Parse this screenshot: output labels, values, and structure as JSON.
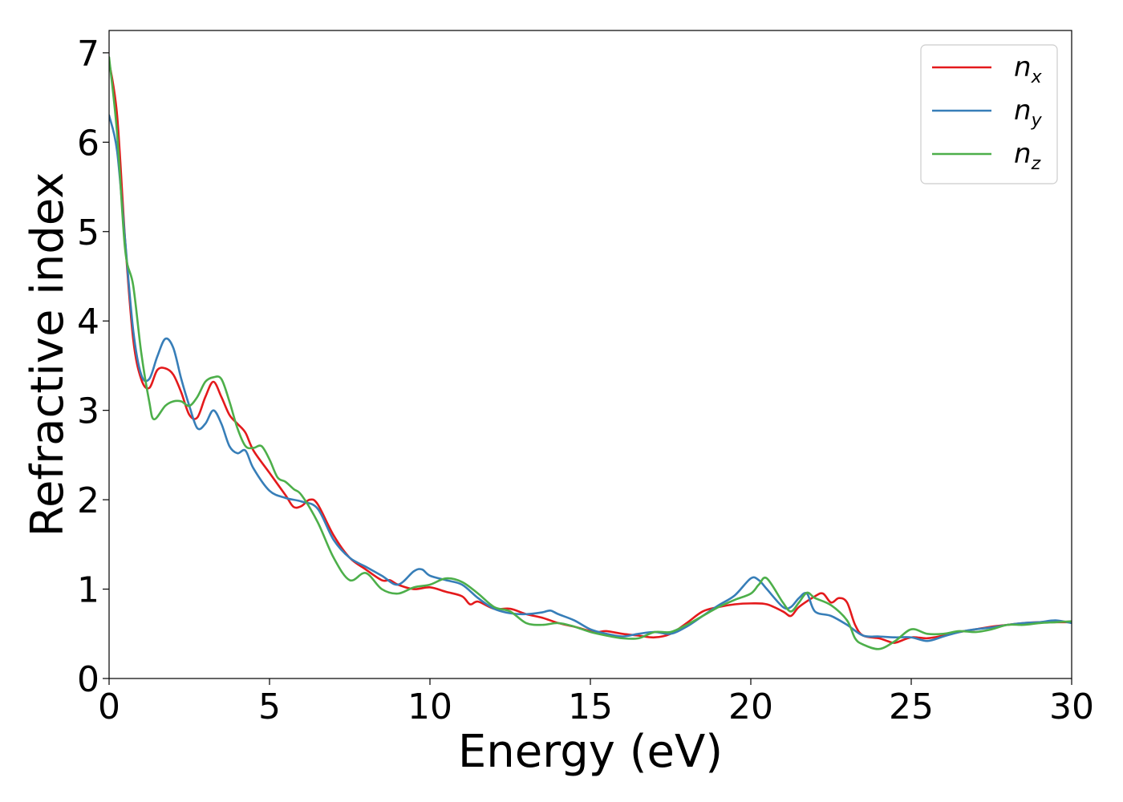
{
  "chart_data": {
    "type": "line",
    "xlabel": "Energy (eV)",
    "ylabel": "Refractive index",
    "xlim": [
      0,
      30
    ],
    "ylim": [
      0,
      7.25
    ],
    "xticks": [
      0,
      5,
      10,
      15,
      20,
      25,
      30
    ],
    "yticks": [
      0,
      1,
      2,
      3,
      4,
      5,
      6,
      7
    ],
    "xtick_labels": [
      "0",
      "5",
      "10",
      "15",
      "20",
      "25",
      "30"
    ],
    "ytick_labels": [
      "0",
      "1",
      "2",
      "3",
      "4",
      "5",
      "6",
      "7"
    ],
    "grid": false,
    "legend_position": "top-right",
    "series": [
      {
        "name": "n",
        "subscript": "x",
        "color": "#e41a1c",
        "x": [
          0,
          0.25,
          0.5,
          0.75,
          1.0,
          1.25,
          1.5,
          1.75,
          2.0,
          2.25,
          2.5,
          2.75,
          3.0,
          3.25,
          3.5,
          3.75,
          4.0,
          4.25,
          4.5,
          5.0,
          5.5,
          5.75,
          6.0,
          6.25,
          6.5,
          7.0,
          7.5,
          8.0,
          8.5,
          8.75,
          9.0,
          9.5,
          10.0,
          10.5,
          11.0,
          11.25,
          11.5,
          12.0,
          12.5,
          13.0,
          13.5,
          14.0,
          14.5,
          15.0,
          15.25,
          15.5,
          16.0,
          16.5,
          17.0,
          17.5,
          18.0,
          18.5,
          19.0,
          19.5,
          20.0,
          20.5,
          21.0,
          21.25,
          21.5,
          22.0,
          22.25,
          22.5,
          22.75,
          23.0,
          23.25,
          23.5,
          24.0,
          24.25,
          24.5,
          25.0,
          25.5,
          26.0,
          26.5,
          27.0,
          27.5,
          28.0,
          28.5,
          29.0,
          29.5,
          30.0
        ],
        "y": [
          6.9,
          6.3,
          4.9,
          3.8,
          3.35,
          3.25,
          3.45,
          3.47,
          3.4,
          3.2,
          2.95,
          2.92,
          3.15,
          3.32,
          3.15,
          2.95,
          2.85,
          2.75,
          2.55,
          2.3,
          2.05,
          1.92,
          1.93,
          2.0,
          1.95,
          1.6,
          1.35,
          1.22,
          1.1,
          1.1,
          1.05,
          1.0,
          1.02,
          0.97,
          0.92,
          0.83,
          0.86,
          0.78,
          0.78,
          0.72,
          0.68,
          0.62,
          0.58,
          0.53,
          0.52,
          0.53,
          0.5,
          0.48,
          0.46,
          0.5,
          0.62,
          0.75,
          0.8,
          0.83,
          0.84,
          0.83,
          0.75,
          0.7,
          0.8,
          0.92,
          0.95,
          0.85,
          0.9,
          0.85,
          0.6,
          0.48,
          0.45,
          0.42,
          0.4,
          0.46,
          0.45,
          0.48,
          0.52,
          0.55,
          0.58,
          0.6,
          0.62,
          0.63,
          0.63,
          0.63
        ]
      },
      {
        "name": "n",
        "subscript": "y",
        "color": "#377eb8",
        "x": [
          0,
          0.25,
          0.5,
          0.75,
          1.0,
          1.25,
          1.5,
          1.75,
          2.0,
          2.25,
          2.5,
          2.75,
          3.0,
          3.25,
          3.5,
          3.75,
          4.0,
          4.25,
          4.5,
          5.0,
          5.5,
          6.0,
          6.5,
          7.0,
          7.5,
          8.0,
          8.5,
          9.0,
          9.5,
          9.75,
          10.0,
          10.5,
          11.0,
          11.5,
          12.0,
          12.5,
          13.0,
          13.5,
          13.75,
          14.0,
          14.5,
          15.0,
          15.5,
          16.0,
          16.5,
          17.0,
          17.5,
          18.0,
          18.5,
          19.0,
          19.5,
          20.0,
          20.25,
          20.5,
          21.0,
          21.25,
          21.5,
          21.75,
          22.0,
          22.5,
          23.0,
          23.5,
          24.0,
          24.5,
          25.0,
          25.5,
          26.0,
          26.5,
          27.0,
          27.5,
          28.0,
          28.5,
          29.0,
          29.5,
          30.0
        ],
        "y": [
          6.3,
          5.9,
          4.9,
          3.9,
          3.4,
          3.35,
          3.6,
          3.8,
          3.7,
          3.35,
          3.05,
          2.8,
          2.85,
          3.0,
          2.85,
          2.6,
          2.52,
          2.55,
          2.35,
          2.1,
          2.02,
          1.98,
          1.9,
          1.55,
          1.35,
          1.25,
          1.15,
          1.05,
          1.2,
          1.22,
          1.15,
          1.1,
          1.05,
          0.9,
          0.78,
          0.73,
          0.72,
          0.74,
          0.76,
          0.72,
          0.65,
          0.55,
          0.5,
          0.47,
          0.5,
          0.52,
          0.5,
          0.58,
          0.7,
          0.82,
          0.93,
          1.12,
          1.1,
          1.0,
          0.8,
          0.8,
          0.9,
          0.95,
          0.75,
          0.7,
          0.6,
          0.48,
          0.47,
          0.46,
          0.46,
          0.42,
          0.47,
          0.52,
          0.55,
          0.57,
          0.6,
          0.62,
          0.63,
          0.65,
          0.62
        ]
      },
      {
        "name": "n",
        "subscript": "z",
        "color": "#4daf4a",
        "x": [
          0,
          0.25,
          0.5,
          0.75,
          1.0,
          1.25,
          1.4,
          1.75,
          2.0,
          2.25,
          2.5,
          2.75,
          3.0,
          3.25,
          3.5,
          3.75,
          4.0,
          4.25,
          4.5,
          4.75,
          5.0,
          5.25,
          5.5,
          5.75,
          6.0,
          6.5,
          7.0,
          7.5,
          8.0,
          8.5,
          9.0,
          9.5,
          10.0,
          10.5,
          11.0,
          11.5,
          12.0,
          12.5,
          13.0,
          13.5,
          14.0,
          14.5,
          15.0,
          15.5,
          16.0,
          16.5,
          17.0,
          17.5,
          18.0,
          18.5,
          19.0,
          19.5,
          20.0,
          20.25,
          20.5,
          21.0,
          21.25,
          21.5,
          21.75,
          22.0,
          22.5,
          23.0,
          23.25,
          23.5,
          24.0,
          24.5,
          25.0,
          25.5,
          26.0,
          26.5,
          27.0,
          27.5,
          28.0,
          28.5,
          29.0,
          29.5,
          30.0
        ],
        "y": [
          6.95,
          6.1,
          4.8,
          4.4,
          3.65,
          3.1,
          2.9,
          3.05,
          3.1,
          3.1,
          3.05,
          3.15,
          3.32,
          3.37,
          3.35,
          3.1,
          2.8,
          2.6,
          2.58,
          2.6,
          2.45,
          2.25,
          2.2,
          2.12,
          2.05,
          1.75,
          1.35,
          1.1,
          1.18,
          1.0,
          0.95,
          1.02,
          1.05,
          1.12,
          1.08,
          0.95,
          0.8,
          0.75,
          0.62,
          0.6,
          0.62,
          0.58,
          0.52,
          0.48,
          0.45,
          0.45,
          0.52,
          0.52,
          0.6,
          0.7,
          0.8,
          0.88,
          0.95,
          1.05,
          1.12,
          0.85,
          0.75,
          0.85,
          0.96,
          0.9,
          0.82,
          0.65,
          0.45,
          0.38,
          0.33,
          0.42,
          0.55,
          0.5,
          0.5,
          0.53,
          0.52,
          0.55,
          0.6,
          0.6,
          0.62,
          0.63,
          0.64
        ]
      }
    ]
  }
}
